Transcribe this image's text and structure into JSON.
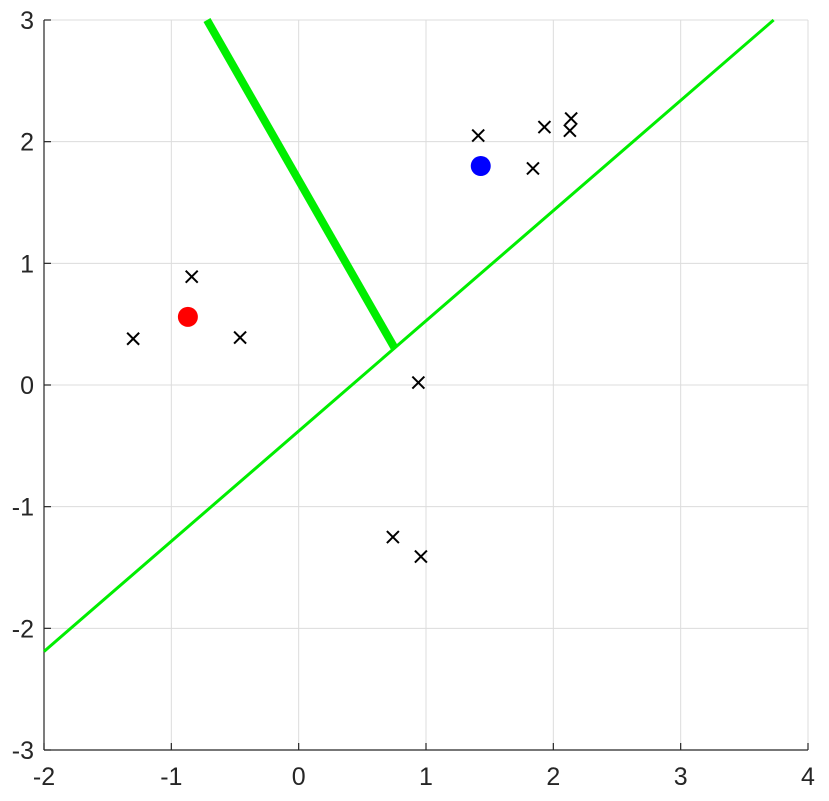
{
  "chart_data": {
    "type": "scatter",
    "title": "",
    "xlabel": "",
    "ylabel": "",
    "xlim": [
      -2,
      4
    ],
    "ylim": [
      -3,
      3
    ],
    "grid": true,
    "x_ticks": [
      -2,
      -1,
      0,
      1,
      2,
      3,
      4
    ],
    "y_ticks": [
      -3,
      -2,
      -1,
      0,
      1,
      2,
      3
    ],
    "x_tick_labels": [
      "-2",
      "-1",
      "0",
      "1",
      "2",
      "3",
      "4"
    ],
    "y_tick_labels": [
      "-3",
      "-2",
      "-1",
      "0",
      "1",
      "2",
      "3"
    ],
    "series": [
      {
        "marker": "x",
        "color": "#000000",
        "points": [
          {
            "x": -1.3,
            "y": 0.38
          },
          {
            "x": -0.84,
            "y": 0.89
          },
          {
            "x": -0.46,
            "y": 0.39
          },
          {
            "x": 0.94,
            "y": 0.02
          },
          {
            "x": 0.74,
            "y": -1.25
          },
          {
            "x": 0.96,
            "y": -1.41
          },
          {
            "x": 1.41,
            "y": 2.05
          },
          {
            "x": 1.93,
            "y": 2.12
          },
          {
            "x": 1.84,
            "y": 1.78
          },
          {
            "x": 2.14,
            "y": 2.19
          },
          {
            "x": 2.13,
            "y": 2.09
          }
        ]
      },
      {
        "marker": "filled-circle",
        "color": "#ff0000",
        "points": [
          {
            "x": -0.87,
            "y": 0.56
          }
        ]
      },
      {
        "marker": "filled-circle",
        "color": "#0000ff",
        "points": [
          {
            "x": 1.43,
            "y": 1.8
          }
        ]
      }
    ],
    "lines": [
      {
        "style": "thin",
        "color": "#00ee00",
        "from": {
          "x": -2.0,
          "y": -2.19
        },
        "to": {
          "x": 3.73,
          "y": 3.0
        }
      },
      {
        "style": "thick",
        "color": "#00ee00",
        "from": {
          "x": -0.72,
          "y": 3.0
        },
        "to": {
          "x": 0.75,
          "y": 0.31
        }
      }
    ]
  }
}
